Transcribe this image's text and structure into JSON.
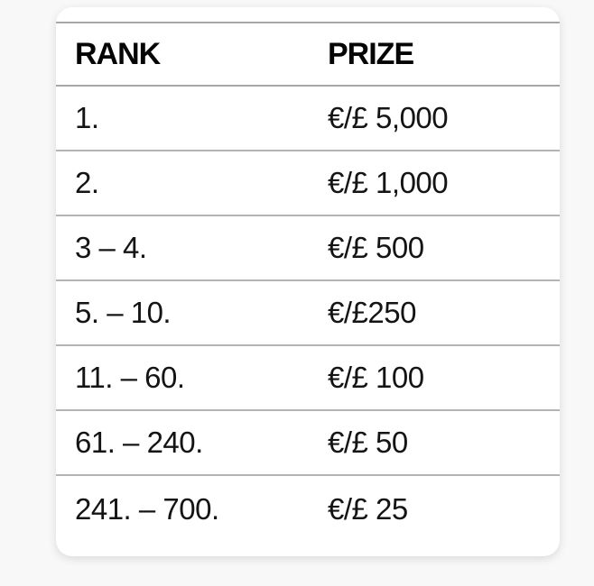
{
  "colors": {
    "page_background": "#f8f8f8",
    "card_background": "#ffffff",
    "top_line": "#a6a6a6",
    "divider": "#b3b3b3",
    "text": "#0d0d0d"
  },
  "prize_table": {
    "headers": {
      "rank": "RANK",
      "prize": "PRIZE"
    },
    "rows": [
      {
        "rank": "1.",
        "prize": "€/£ 5,000"
      },
      {
        "rank": "2.",
        "prize": "€/£ 1,000"
      },
      {
        "rank": "3 – 4.",
        "prize": "€/£ 500"
      },
      {
        "rank": "5. – 10.",
        "prize": "€/£250"
      },
      {
        "rank": "11. – 60.",
        "prize": "€/£ 100"
      },
      {
        "rank": "61. – 240.",
        "prize": "€/£ 50"
      },
      {
        "rank": "241. – 700.",
        "prize": "€/£ 25"
      }
    ]
  }
}
